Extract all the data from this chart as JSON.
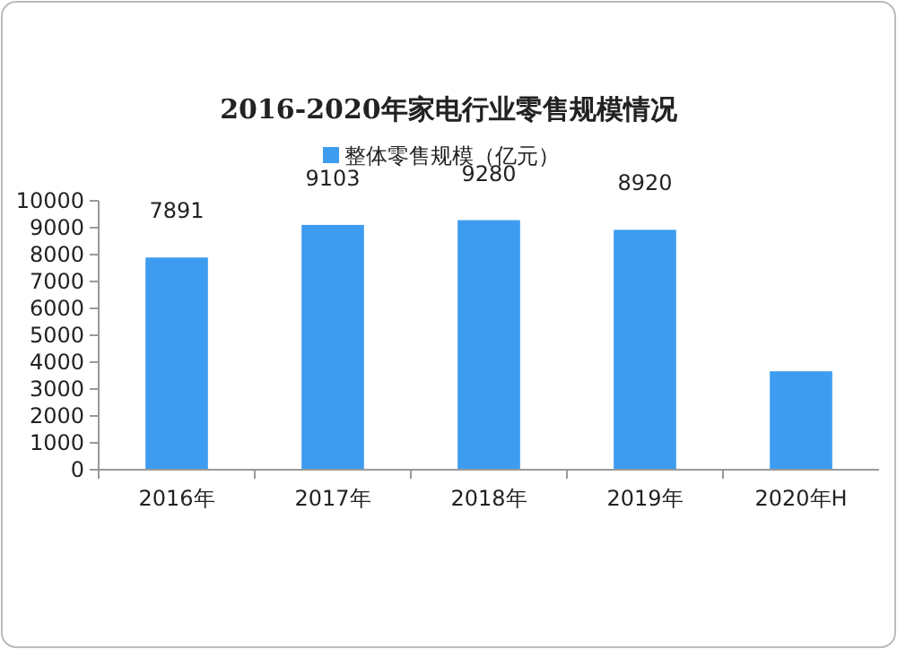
{
  "chart_data": {
    "type": "bar",
    "title": "2016-2020年家电行业零售规模情况",
    "categories": [
      "2016年",
      "2017年",
      "2018年",
      "2019年",
      "2020年H"
    ],
    "series": [
      {
        "name": "整体零售规模（亿元）",
        "color": "#3d9cf0",
        "values": [
          7891,
          9103,
          9280,
          8920,
          3660
        ],
        "value_labels": [
          "7891",
          "9103",
          "9280",
          "8920",
          null
        ]
      }
    ],
    "ylim": [
      0,
      10000
    ],
    "yticks": [
      0,
      1000,
      2000,
      3000,
      4000,
      5000,
      6000,
      7000,
      8000,
      9000,
      10000
    ],
    "grid": false,
    "legend": "top"
  }
}
